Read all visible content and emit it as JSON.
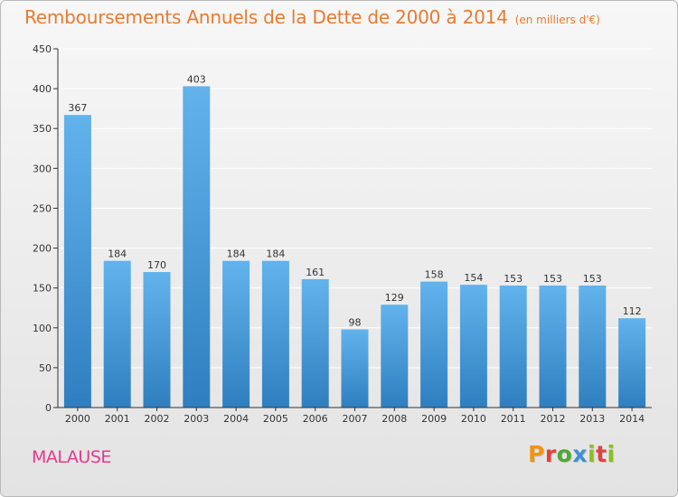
{
  "header": {
    "title": "Remboursements Annuels de la Dette de 2000 à 2014",
    "unit": "(en milliers d'€)"
  },
  "footer": {
    "commune": "MALAUSE",
    "brand": "Proxiti",
    "brand_colors": [
      "#f29312",
      "#e2413e",
      "#4fa832",
      "#3f8fd2",
      "#8bbf24",
      "#e2413e",
      "#8bbf24"
    ]
  },
  "colors": {
    "title": "#ea7a2e",
    "commune": "#e23a8f",
    "bar_top": "#62b3ec",
    "bar_bottom": "#2f7fc0",
    "axis": "#333333",
    "grid": "#ffffff"
  },
  "chart_data": {
    "type": "bar",
    "categories": [
      "2000",
      "2001",
      "2002",
      "2003",
      "2004",
      "2005",
      "2006",
      "2007",
      "2008",
      "2009",
      "2010",
      "2011",
      "2012",
      "2013",
      "2014"
    ],
    "values": [
      367,
      184,
      170,
      403,
      184,
      184,
      161,
      98,
      129,
      158,
      154,
      153,
      153,
      153,
      112
    ],
    "ylim": [
      0,
      450
    ],
    "yticks": [
      0,
      50,
      100,
      150,
      200,
      250,
      300,
      350,
      400,
      450
    ],
    "grid": true,
    "data_labels": true
  }
}
